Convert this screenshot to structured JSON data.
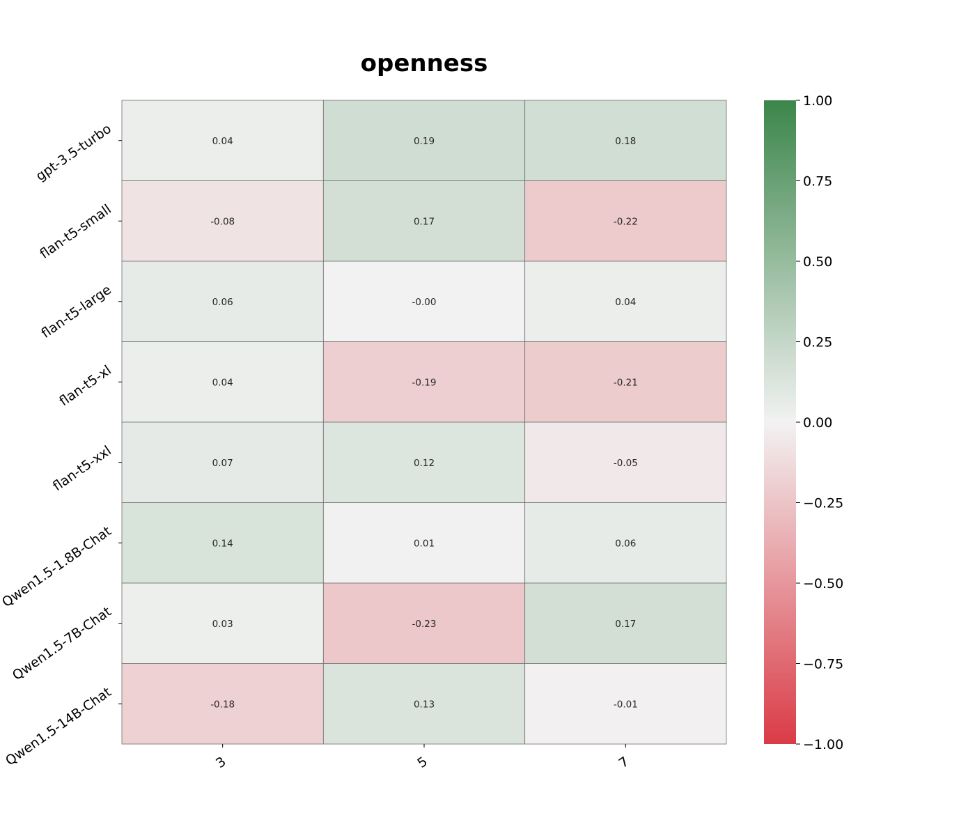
{
  "chart_data": {
    "type": "heatmap",
    "title": "openness",
    "x_categories": [
      "3",
      "5",
      "7"
    ],
    "y_categories": [
      "gpt-3.5-turbo",
      "flan-t5-small",
      "flan-t5-large",
      "flan-t5-xl",
      "flan-t5-xxl",
      "Qwen1.5-1.8B-Chat",
      "Qwen1.5-7B-Chat",
      "Qwen1.5-14B-Chat"
    ],
    "values": [
      [
        0.04,
        0.19,
        0.18
      ],
      [
        -0.08,
        0.17,
        -0.22
      ],
      [
        0.06,
        -0.0,
        0.04
      ],
      [
        0.04,
        -0.19,
        -0.21
      ],
      [
        0.07,
        0.12,
        -0.05
      ],
      [
        0.14,
        0.01,
        0.06
      ],
      [
        0.03,
        -0.23,
        0.17
      ],
      [
        -0.18,
        0.13,
        -0.01
      ]
    ],
    "value_labels": [
      [
        "0.04",
        "0.19",
        "0.18"
      ],
      [
        "-0.08",
        "0.17",
        "-0.22"
      ],
      [
        "0.06",
        "-0.00",
        "0.04"
      ],
      [
        "0.04",
        "-0.19",
        "-0.21"
      ],
      [
        "0.07",
        "0.12",
        "-0.05"
      ],
      [
        "0.14",
        "0.01",
        "0.06"
      ],
      [
        "0.03",
        "-0.23",
        "0.17"
      ],
      [
        "-0.18",
        "0.13",
        "-0.01"
      ]
    ],
    "colorbar": {
      "vmin": -1.0,
      "vmax": 1.0,
      "ticks": [
        1.0,
        0.75,
        0.5,
        0.25,
        0.0,
        -0.25,
        -0.5,
        -0.75,
        -1.0
      ],
      "tick_labels": [
        "1.00",
        "0.75",
        "0.50",
        "0.25",
        "0.00",
        "−0.25",
        "−0.50",
        "−0.75",
        "−1.00"
      ],
      "colors": {
        "low": "#da3b46",
        "mid": "#f2f2f2",
        "high": "#3b854a"
      }
    }
  }
}
